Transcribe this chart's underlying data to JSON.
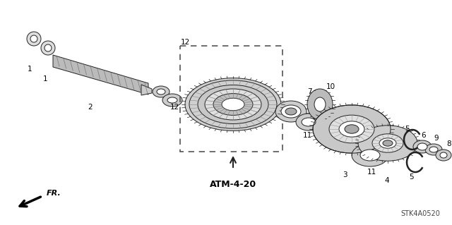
{
  "bg_color": "#ffffff",
  "line_color": "#222222",
  "part_label": "ATM-4-20",
  "ref_code": "STK4A0520",
  "fr_label": "FR.",
  "figsize": [
    6.4,
    3.19
  ],
  "dpi": 100
}
